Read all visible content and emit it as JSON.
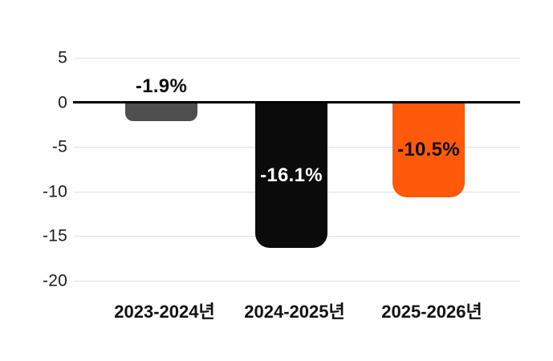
{
  "chart_data": {
    "type": "bar",
    "title": "",
    "xlabel": "",
    "ylabel": "",
    "categories": [
      "2023-2024년",
      "2024-2025년",
      "2025-2026년"
    ],
    "values": [
      -1.9,
      -16.1,
      -10.5
    ],
    "value_labels": [
      "-1.9%",
      "-16.1%",
      "-10.5%"
    ],
    "value_label_placement": [
      "above",
      "inside",
      "inside"
    ],
    "unit": "%",
    "ylim": [
      -20,
      5
    ],
    "yticks": [
      5,
      0,
      -5,
      -10,
      -15,
      -20
    ],
    "grid": true,
    "legend": "none",
    "bar_colors": [
      "#4f4f4f",
      "#0b0b0b",
      "#ff5a0c"
    ],
    "value_label_colors": [
      "#0b0b0b",
      "#ffffff",
      "#0b0b0b"
    ]
  },
  "colors": {
    "background": "#ffffff",
    "gridline": "#e0e0e0",
    "zero_line": "#000000",
    "tick_text": "#1c1c1c",
    "axis_text": "#111111"
  }
}
